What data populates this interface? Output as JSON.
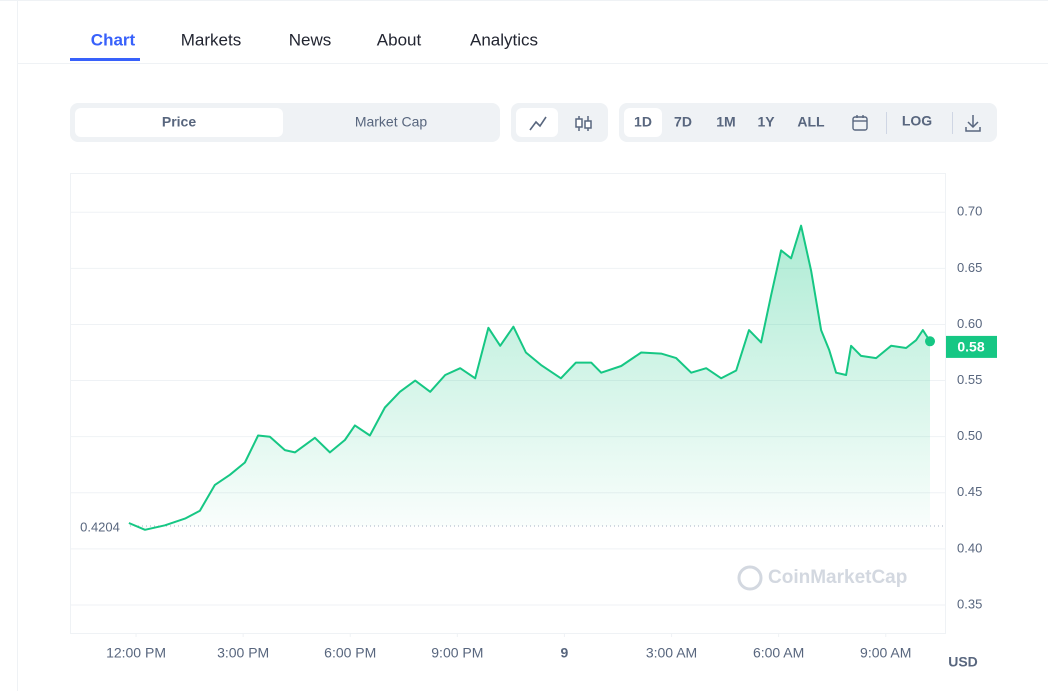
{
  "tabs": [
    "Chart",
    "Markets",
    "News",
    "About",
    "Analytics"
  ],
  "toggle": [
    "Price",
    "Market Cap"
  ],
  "ranges": [
    "1D",
    "7D",
    "1M",
    "1Y",
    "ALL"
  ],
  "log_button": "LOG",
  "chart_data": {
    "type": "line",
    "x": [
      -0.2,
      0.25,
      0.81,
      1.37,
      1.79,
      2.21,
      2.63,
      3.05,
      3.42,
      3.75,
      4.17,
      4.45,
      5.01,
      5.43,
      5.85,
      6.13,
      6.55,
      6.97,
      7.39,
      7.82,
      8.24,
      8.66,
      9.08,
      9.5,
      9.87,
      10.2,
      10.57,
      10.92,
      11.34,
      11.9,
      12.32,
      12.75,
      13.03,
      13.59,
      14.15,
      14.71,
      15.13,
      15.55,
      15.97,
      16.39,
      16.81,
      17.17,
      17.51,
      17.79,
      18.07,
      18.35,
      18.63,
      18.91,
      19.19,
      19.42,
      19.61,
      19.89,
      20.03,
      20.31,
      20.73,
      21.15,
      21.57,
      21.85,
      22.04,
      22.24
    ],
    "values": [
      0.423,
      0.417,
      0.421,
      0.427,
      0.434,
      0.457,
      0.466,
      0.477,
      0.501,
      0.5,
      0.488,
      0.486,
      0.499,
      0.486,
      0.497,
      0.51,
      0.501,
      0.526,
      0.54,
      0.55,
      0.54,
      0.555,
      0.561,
      0.552,
      0.597,
      0.581,
      0.598,
      0.575,
      0.564,
      0.552,
      0.566,
      0.566,
      0.557,
      0.563,
      0.575,
      0.574,
      0.57,
      0.557,
      0.561,
      0.552,
      0.559,
      0.595,
      0.584,
      0.626,
      0.666,
      0.659,
      0.688,
      0.648,
      0.595,
      0.577,
      0.557,
      0.555,
      0.581,
      0.572,
      0.57,
      0.581,
      0.579,
      0.586,
      0.595,
      0.585
    ],
    "color": "#16c784",
    "xlim": [
      -1.85,
      22.66
    ],
    "ylim": [
      0.325,
      0.735
    ],
    "xticks": [
      {
        "value": 0,
        "label": "12:00 PM"
      },
      {
        "value": 3,
        "label": "3:00 PM"
      },
      {
        "value": 6,
        "label": "6:00 PM"
      },
      {
        "value": 9,
        "label": "9:00 PM"
      },
      {
        "value": 12,
        "label": "9"
      },
      {
        "value": 15,
        "label": "3:00 AM"
      },
      {
        "value": 18,
        "label": "6:00 AM"
      },
      {
        "value": 21,
        "label": "9:00 AM"
      }
    ],
    "yticks": [
      {
        "value": 0.7,
        "label": "0.70"
      },
      0.65,
      {
        "value": 0.6,
        "label": "0.60"
      },
      0.55,
      {
        "value": 0.5,
        "label": "0.50"
      },
      0.45,
      {
        "value": 0.4,
        "label": "0.40"
      },
      0.35
    ],
    "grid": true,
    "baseline": 0.4204,
    "price_label": 0.58,
    "unit": "USD",
    "watermark": "CoinMarketCap"
  }
}
